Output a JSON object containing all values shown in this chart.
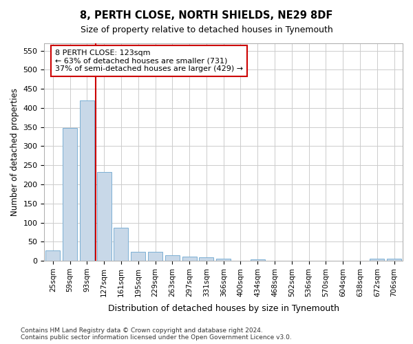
{
  "title1": "8, PERTH CLOSE, NORTH SHIELDS, NE29 8DF",
  "title2": "Size of property relative to detached houses in Tynemouth",
  "xlabel": "Distribution of detached houses by size in Tynemouth",
  "ylabel": "Number of detached properties",
  "bar_labels": [
    "25sqm",
    "59sqm",
    "93sqm",
    "127sqm",
    "161sqm",
    "195sqm",
    "229sqm",
    "263sqm",
    "297sqm",
    "331sqm",
    "366sqm",
    "400sqm",
    "434sqm",
    "468sqm",
    "502sqm",
    "536sqm",
    "570sqm",
    "604sqm",
    "638sqm",
    "672sqm",
    "706sqm"
  ],
  "bar_values": [
    27,
    347,
    420,
    233,
    87,
    24,
    23,
    14,
    11,
    9,
    5,
    0,
    4,
    0,
    0,
    0,
    0,
    0,
    0,
    5,
    5
  ],
  "bar_color": "#c8d8e8",
  "bar_edgecolor": "#7bafd4",
  "vline_x": 2.5,
  "vline_color": "#cc0000",
  "ylim": [
    0,
    570
  ],
  "yticks": [
    0,
    50,
    100,
    150,
    200,
    250,
    300,
    350,
    400,
    450,
    500,
    550
  ],
  "annotation_text": "8 PERTH CLOSE: 123sqm\n← 63% of detached houses are smaller (731)\n37% of semi-detached houses are larger (429) →",
  "annotation_box_color": "#ffffff",
  "annotation_box_edgecolor": "#cc0000",
  "footer_line1": "Contains HM Land Registry data © Crown copyright and database right 2024.",
  "footer_line2": "Contains public sector information licensed under the Open Government Licence v3.0.",
  "background_color": "#ffffff",
  "grid_color": "#cccccc"
}
